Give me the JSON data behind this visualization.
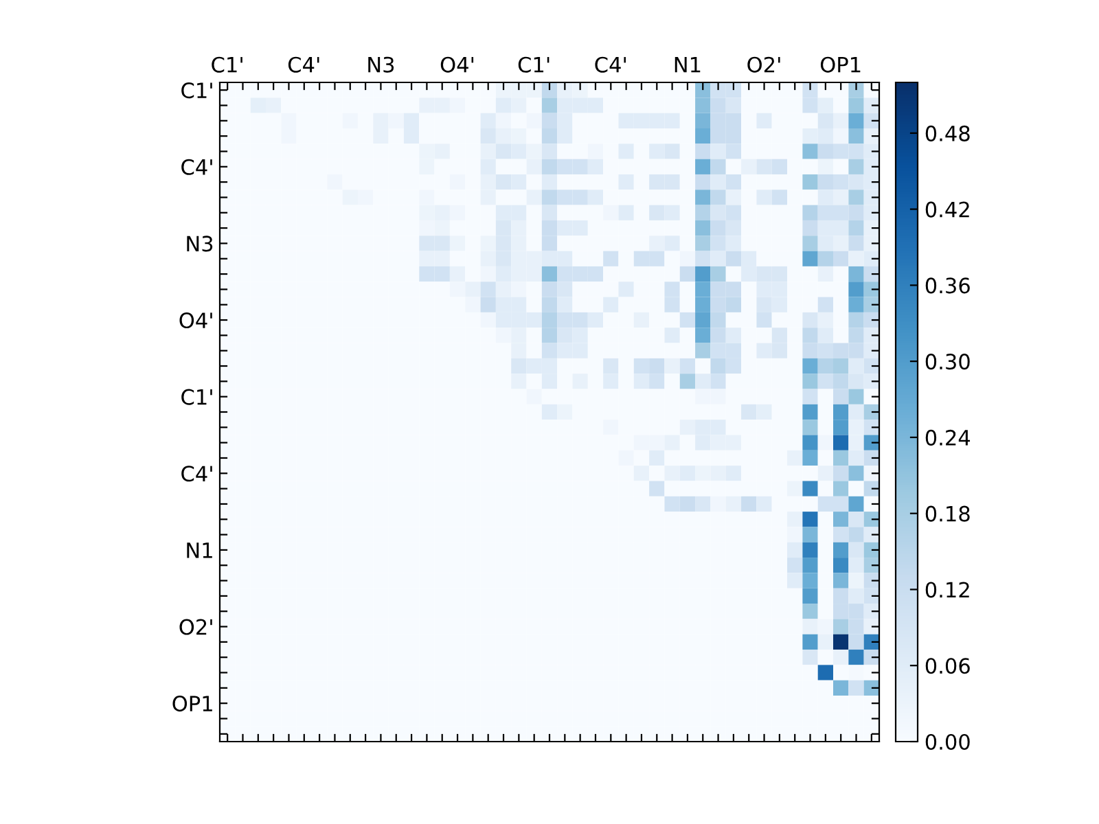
{
  "chart_data": {
    "type": "heatmap",
    "categories": [
      "C1'",
      null,
      null,
      null,
      null,
      "C4'",
      null,
      null,
      null,
      null,
      "N3",
      null,
      null,
      null,
      null,
      "O4'",
      null,
      null,
      null,
      null,
      "C1'",
      null,
      null,
      null,
      null,
      "C4'",
      null,
      null,
      null,
      null,
      "N1",
      null,
      null,
      null,
      null,
      "O2'",
      null,
      null,
      null,
      null,
      "OP1",
      null,
      null
    ],
    "y_categories": [
      "C1'",
      null,
      null,
      null,
      null,
      "C4'",
      null,
      null,
      null,
      null,
      "N3",
      null,
      null,
      null,
      null,
      "O4'",
      null,
      null,
      null,
      null,
      "C1'",
      null,
      null,
      null,
      null,
      "C4'",
      null,
      null,
      null,
      null,
      "N1",
      null,
      null,
      null,
      null,
      "O2'",
      null,
      null,
      null,
      null,
      "OP1",
      null,
      null
    ],
    "cells": [
      [
        0,
        0,
        0,
        0,
        0,
        0,
        0,
        0,
        0,
        0,
        0,
        0,
        0,
        0,
        0,
        0,
        0,
        0,
        0.03,
        0.03,
        0.03,
        0.14,
        0.04,
        0.03,
        0,
        0,
        0,
        0,
        0,
        0,
        0,
        0.22,
        0.1,
        0.1,
        0,
        0,
        0,
        0,
        0.1,
        0,
        0,
        0.18,
        0
      ],
      [
        0,
        0,
        0.05,
        0.04,
        0,
        0,
        0,
        0,
        0,
        0,
        0,
        0,
        0,
        0.04,
        0.04,
        0.02,
        0,
        0,
        0.06,
        0.04,
        0,
        0.18,
        0.06,
        0.06,
        0.06,
        0,
        0,
        0,
        0,
        0,
        0,
        0.22,
        0.12,
        0.08,
        0,
        0,
        0,
        0,
        0.1,
        0.05,
        0,
        0.2,
        0.06
      ],
      [
        0,
        0,
        0,
        0,
        0.02,
        0,
        0,
        0,
        0.02,
        0,
        0.04,
        0.02,
        0.06,
        0,
        0,
        0,
        0,
        0.06,
        0.02,
        0,
        0.02,
        0.12,
        0.06,
        0,
        0,
        0,
        0.06,
        0.06,
        0.06,
        0.06,
        0,
        0.24,
        0.12,
        0.12,
        0,
        0.06,
        0,
        0,
        0,
        0.08,
        0.04,
        0.26,
        0.1
      ],
      [
        0,
        0,
        0,
        0,
        0.02,
        0,
        0,
        0,
        0,
        0,
        0.04,
        0,
        0.06,
        0,
        0,
        0,
        0,
        0.08,
        0.04,
        0.03,
        0,
        0.14,
        0.06,
        0,
        0,
        0,
        0,
        0,
        0,
        0,
        0,
        0.26,
        0.12,
        0.12,
        0,
        0,
        0,
        0,
        0.05,
        0.06,
        0.02,
        0.22,
        0.04
      ],
      [
        0,
        0,
        0,
        0,
        0,
        0,
        0,
        0,
        0,
        0,
        0,
        0,
        0,
        0.03,
        0.04,
        0,
        0,
        0.04,
        0.08,
        0.06,
        0.03,
        0.08,
        0,
        0,
        0.02,
        0,
        0.06,
        0,
        0.06,
        0.08,
        0,
        0.12,
        0.06,
        0.1,
        0,
        0,
        0,
        0,
        0.22,
        0.12,
        0.1,
        0.1,
        0.06
      ],
      [
        0,
        0,
        0,
        0,
        0,
        0,
        0,
        0,
        0,
        0,
        0,
        0,
        0,
        0.03,
        0,
        0,
        0,
        0.06,
        0,
        0,
        0.04,
        0.14,
        0.1,
        0.1,
        0.06,
        0,
        0,
        0,
        0,
        0,
        0,
        0.26,
        0.14,
        0,
        0.04,
        0.08,
        0.1,
        0,
        0,
        0.03,
        0,
        0.18,
        0.06
      ],
      [
        0,
        0,
        0,
        0,
        0,
        0,
        0,
        0.02,
        0,
        0,
        0,
        0,
        0,
        0,
        0,
        0.02,
        0,
        0.04,
        0.08,
        0.06,
        0,
        0.06,
        0,
        0,
        0,
        0,
        0.06,
        0,
        0.08,
        0.08,
        0,
        0.12,
        0.06,
        0.1,
        0,
        0,
        0,
        0,
        0.2,
        0.12,
        0.1,
        0.08,
        0.06
      ],
      [
        0,
        0,
        0,
        0,
        0,
        0,
        0,
        0,
        0.03,
        0.02,
        0,
        0,
        0,
        0.02,
        0,
        0,
        0,
        0.04,
        0,
        0,
        0.04,
        0.14,
        0.1,
        0.1,
        0.06,
        0,
        0,
        0,
        0,
        0,
        0,
        0.24,
        0.14,
        0.04,
        0,
        0.06,
        0.1,
        0,
        0,
        0.06,
        0.04,
        0.18,
        0.06
      ],
      [
        0,
        0,
        0,
        0,
        0,
        0,
        0,
        0,
        0,
        0,
        0,
        0,
        0,
        0.03,
        0.04,
        0.02,
        0,
        0,
        0.06,
        0.06,
        0,
        0.08,
        0,
        0,
        0,
        0.02,
        0.06,
        0,
        0.08,
        0.06,
        0,
        0.16,
        0.08,
        0.1,
        0,
        0,
        0,
        0,
        0.16,
        0.1,
        0.1,
        0.12,
        0.06
      ],
      [
        0,
        0,
        0,
        0,
        0,
        0,
        0,
        0,
        0,
        0,
        0,
        0,
        0,
        0.02,
        0.03,
        0,
        0,
        0,
        0.08,
        0.04,
        0,
        0.12,
        0.06,
        0.06,
        0,
        0,
        0,
        0,
        0,
        0,
        0,
        0.22,
        0.12,
        0.08,
        0,
        0,
        0,
        0,
        0.12,
        0.06,
        0.06,
        0.16,
        0.04
      ],
      [
        0,
        0,
        0,
        0,
        0,
        0,
        0,
        0,
        0,
        0,
        0,
        0,
        0,
        0.08,
        0.08,
        0.03,
        0,
        0.03,
        0.08,
        0.04,
        0,
        0.12,
        0,
        0,
        0,
        0,
        0,
        0,
        0.04,
        0.06,
        0,
        0.18,
        0.1,
        0.06,
        0,
        0,
        0,
        0,
        0.18,
        0.06,
        0.04,
        0.12,
        0.04
      ],
      [
        0,
        0,
        0,
        0,
        0,
        0,
        0,
        0,
        0,
        0,
        0,
        0,
        0,
        0.04,
        0.04,
        0,
        0,
        0.04,
        0.08,
        0.04,
        0.04,
        0.06,
        0.06,
        0,
        0,
        0.1,
        0,
        0.1,
        0.1,
        0,
        0.02,
        0.1,
        0.06,
        0.12,
        0.06,
        0,
        0,
        0,
        0.28,
        0.16,
        0.12,
        0.04,
        0.06
      ],
      [
        0,
        0,
        0,
        0,
        0,
        0,
        0,
        0,
        0,
        0,
        0,
        0,
        0,
        0.1,
        0.1,
        0.04,
        0,
        0.02,
        0.06,
        0.04,
        0.04,
        0.22,
        0.1,
        0.1,
        0.1,
        0,
        0,
        0,
        0,
        0,
        0.12,
        0.3,
        0.18,
        0,
        0.06,
        0.08,
        0.08,
        0,
        0,
        0.04,
        0,
        0.24,
        0.12
      ],
      [
        0,
        0,
        0,
        0,
        0,
        0,
        0,
        0,
        0,
        0,
        0,
        0,
        0,
        0,
        0,
        0.02,
        0.04,
        0.1,
        0.04,
        0.02,
        0,
        0.12,
        0.08,
        0,
        0,
        0,
        0.06,
        0,
        0,
        0.1,
        0,
        0.26,
        0.12,
        0.12,
        0,
        0.06,
        0.06,
        0,
        0,
        0,
        0,
        0.3,
        0.2
      ],
      [
        0,
        0,
        0,
        0,
        0,
        0,
        0,
        0,
        0,
        0,
        0,
        0,
        0,
        0,
        0,
        0,
        0.02,
        0.12,
        0.06,
        0.06,
        0,
        0.14,
        0.06,
        0,
        0,
        0.06,
        0,
        0,
        0,
        0.1,
        0,
        0.26,
        0.12,
        0.14,
        0,
        0.08,
        0.06,
        0,
        0,
        0.1,
        0,
        0.26,
        0.18
      ],
      [
        0,
        0,
        0,
        0,
        0,
        0,
        0,
        0,
        0,
        0,
        0,
        0,
        0,
        0,
        0,
        0,
        0,
        0.02,
        0.06,
        0.06,
        0.06,
        0.16,
        0.1,
        0.1,
        0.06,
        0,
        0,
        0.04,
        0,
        0,
        0.1,
        0.28,
        0.14,
        0,
        0,
        0.1,
        0,
        0,
        0.08,
        0.04,
        0,
        0.16,
        0.12
      ],
      [
        0,
        0,
        0,
        0,
        0,
        0,
        0,
        0,
        0,
        0,
        0,
        0,
        0,
        0,
        0,
        0,
        0,
        0,
        0.02,
        0.04,
        0,
        0.16,
        0.08,
        0.06,
        0,
        0,
        0,
        0,
        0,
        0.06,
        0,
        0.26,
        0.12,
        0.06,
        0,
        0,
        0.08,
        0,
        0.14,
        0.06,
        0,
        0.14,
        0.06
      ],
      [
        0,
        0,
        0,
        0,
        0,
        0,
        0,
        0,
        0,
        0,
        0,
        0,
        0,
        0,
        0,
        0,
        0,
        0,
        0,
        0.04,
        0,
        0.1,
        0.06,
        0.06,
        0,
        0,
        0,
        0,
        0,
        0,
        0,
        0.18,
        0.1,
        0.1,
        0,
        0.06,
        0.08,
        0,
        0.12,
        0.1,
        0.12,
        0.12,
        0.06
      ],
      [
        0,
        0,
        0,
        0,
        0,
        0,
        0,
        0,
        0,
        0,
        0,
        0,
        0,
        0,
        0,
        0,
        0,
        0,
        0,
        0.08,
        0.06,
        0.06,
        0,
        0,
        0,
        0.08,
        0,
        0.1,
        0.12,
        0.04,
        0.1,
        0,
        0.14,
        0.1,
        0,
        0,
        0,
        0,
        0.26,
        0.16,
        0.18,
        0.06,
        0.1
      ],
      [
        0,
        0,
        0,
        0,
        0,
        0,
        0,
        0,
        0,
        0,
        0,
        0,
        0,
        0,
        0,
        0,
        0,
        0,
        0,
        0.04,
        0,
        0.06,
        0,
        0.04,
        0,
        0.06,
        0,
        0.06,
        0.1,
        0,
        0.18,
        0.06,
        0.1,
        0,
        0,
        0,
        0,
        0,
        0.2,
        0.1,
        0.14,
        0.08,
        0.06
      ],
      [
        0,
        0,
        0,
        0,
        0,
        0,
        0,
        0,
        0,
        0,
        0,
        0,
        0,
        0,
        0,
        0,
        0,
        0,
        0,
        0,
        0.02,
        0,
        0,
        0,
        0,
        0,
        0,
        0,
        0,
        0,
        0,
        0.02,
        0.02,
        0,
        0,
        0,
        0,
        0,
        0.1,
        0,
        0.12,
        0.2,
        0
      ],
      [
        0,
        0,
        0,
        0,
        0,
        0,
        0,
        0,
        0,
        0,
        0,
        0,
        0,
        0,
        0,
        0,
        0,
        0,
        0,
        0,
        0,
        0.06,
        0.03,
        0,
        0,
        0,
        0,
        0,
        0,
        0,
        0,
        0,
        0,
        0,
        0.08,
        0.05,
        0,
        0,
        0.3,
        0,
        0.3,
        0.06,
        0.18
      ],
      [
        0,
        0,
        0,
        0,
        0,
        0,
        0,
        0,
        0,
        0,
        0,
        0,
        0,
        0,
        0,
        0,
        0,
        0,
        0,
        0,
        0,
        0,
        0,
        0,
        0,
        0.02,
        0,
        0,
        0,
        0,
        0.04,
        0.06,
        0.06,
        0,
        0,
        0,
        0,
        0,
        0.2,
        0,
        0.3,
        0.04,
        0.1
      ],
      [
        0,
        0,
        0,
        0,
        0,
        0,
        0,
        0,
        0,
        0,
        0,
        0,
        0,
        0,
        0,
        0,
        0,
        0,
        0,
        0,
        0,
        0,
        0,
        0,
        0,
        0,
        0,
        0.02,
        0.02,
        0.04,
        0,
        0.06,
        0.04,
        0.04,
        0,
        0,
        0,
        0,
        0.32,
        0.02,
        0.4,
        0.04,
        0.3
      ],
      [
        0,
        0,
        0,
        0,
        0,
        0,
        0,
        0,
        0,
        0,
        0,
        0,
        0,
        0,
        0,
        0,
        0,
        0,
        0,
        0,
        0,
        0,
        0,
        0,
        0,
        0,
        0.02,
        0,
        0.06,
        0,
        0,
        0,
        0,
        0,
        0,
        0,
        0,
        0.04,
        0.26,
        0,
        0.2,
        0.06,
        0.12
      ],
      [
        0,
        0,
        0,
        0,
        0,
        0,
        0,
        0,
        0,
        0,
        0,
        0,
        0,
        0,
        0,
        0,
        0,
        0,
        0,
        0,
        0,
        0,
        0,
        0,
        0,
        0,
        0,
        0.04,
        0,
        0.04,
        0.06,
        0.03,
        0.04,
        0.06,
        0,
        0,
        0,
        0,
        0,
        0.04,
        0.12,
        0.22,
        0.02
      ],
      [
        0,
        0,
        0,
        0,
        0,
        0,
        0,
        0,
        0,
        0,
        0,
        0,
        0,
        0,
        0,
        0,
        0,
        0,
        0,
        0,
        0,
        0,
        0,
        0,
        0,
        0,
        0,
        0,
        0.1,
        0,
        0,
        0,
        0,
        0,
        0,
        0,
        0,
        0.03,
        0.34,
        0,
        0.2,
        0,
        0.14
      ],
      [
        0,
        0,
        0,
        0,
        0,
        0,
        0,
        0,
        0,
        0,
        0,
        0,
        0,
        0,
        0,
        0,
        0,
        0,
        0,
        0,
        0,
        0,
        0,
        0,
        0,
        0,
        0,
        0,
        0,
        0.1,
        0.12,
        0.08,
        0.02,
        0.04,
        0.12,
        0.06,
        0,
        0,
        0,
        0.1,
        0.1,
        0.28,
        0
      ],
      [
        0,
        0,
        0,
        0,
        0,
        0,
        0,
        0,
        0,
        0,
        0,
        0,
        0,
        0,
        0,
        0,
        0,
        0,
        0,
        0,
        0,
        0,
        0,
        0,
        0,
        0,
        0,
        0,
        0,
        0,
        0,
        0,
        0,
        0,
        0,
        0,
        0,
        0.04,
        0.38,
        0,
        0.24,
        0.08,
        0.2
      ],
      [
        0,
        0,
        0,
        0,
        0,
        0,
        0,
        0,
        0,
        0,
        0,
        0,
        0,
        0,
        0,
        0,
        0,
        0,
        0,
        0,
        0,
        0,
        0,
        0,
        0,
        0,
        0,
        0,
        0,
        0,
        0,
        0,
        0,
        0,
        0,
        0,
        0,
        0.02,
        0.24,
        0,
        0.1,
        0.14,
        0.06
      ],
      [
        0,
        0,
        0,
        0,
        0,
        0,
        0,
        0,
        0,
        0,
        0,
        0,
        0,
        0,
        0,
        0,
        0,
        0,
        0,
        0,
        0,
        0,
        0,
        0,
        0,
        0,
        0,
        0,
        0,
        0,
        0,
        0,
        0,
        0,
        0,
        0,
        0,
        0.06,
        0.36,
        0,
        0.3,
        0.08,
        0.2
      ],
      [
        0,
        0,
        0,
        0,
        0,
        0,
        0,
        0,
        0,
        0,
        0,
        0,
        0,
        0,
        0,
        0,
        0,
        0,
        0,
        0,
        0,
        0,
        0,
        0,
        0,
        0,
        0,
        0,
        0,
        0,
        0,
        0,
        0,
        0,
        0,
        0,
        0,
        0.1,
        0.3,
        0,
        0.34,
        0.06,
        0.18
      ],
      [
        0,
        0,
        0,
        0,
        0,
        0,
        0,
        0,
        0,
        0,
        0,
        0,
        0,
        0,
        0,
        0,
        0,
        0,
        0,
        0,
        0,
        0,
        0,
        0,
        0,
        0,
        0,
        0,
        0,
        0,
        0,
        0,
        0,
        0,
        0,
        0,
        0,
        0.06,
        0.26,
        0,
        0.24,
        0.03,
        0.12
      ],
      [
        0,
        0,
        0,
        0,
        0,
        0,
        0,
        0,
        0,
        0,
        0,
        0,
        0,
        0,
        0,
        0,
        0,
        0,
        0,
        0,
        0,
        0,
        0,
        0,
        0,
        0,
        0,
        0,
        0,
        0,
        0,
        0,
        0,
        0,
        0,
        0,
        0,
        0,
        0.3,
        0,
        0.12,
        0.06,
        0.1
      ],
      [
        0,
        0,
        0,
        0,
        0,
        0,
        0,
        0,
        0,
        0,
        0,
        0,
        0,
        0,
        0,
        0,
        0,
        0,
        0,
        0,
        0,
        0,
        0,
        0,
        0,
        0,
        0,
        0,
        0,
        0,
        0,
        0,
        0,
        0,
        0,
        0,
        0,
        0,
        0.2,
        0,
        0.12,
        0.12,
        0.06
      ],
      [
        0,
        0,
        0,
        0,
        0,
        0,
        0,
        0,
        0,
        0,
        0,
        0,
        0,
        0,
        0,
        0,
        0,
        0,
        0,
        0,
        0,
        0,
        0,
        0,
        0,
        0,
        0,
        0,
        0,
        0,
        0,
        0,
        0,
        0,
        0,
        0,
        0,
        0,
        0.04,
        0.02,
        0.18,
        0.12,
        0.04
      ],
      [
        0,
        0,
        0,
        0,
        0,
        0,
        0,
        0,
        0,
        0,
        0,
        0,
        0,
        0,
        0,
        0,
        0,
        0,
        0,
        0,
        0,
        0,
        0,
        0,
        0,
        0,
        0,
        0,
        0,
        0,
        0,
        0,
        0,
        0,
        0,
        0,
        0,
        0,
        0.3,
        0.04,
        0.51,
        0.12,
        0.36
      ],
      [
        0,
        0,
        0,
        0,
        0,
        0,
        0,
        0,
        0,
        0,
        0,
        0,
        0,
        0,
        0,
        0,
        0,
        0,
        0,
        0,
        0,
        0,
        0,
        0,
        0,
        0,
        0,
        0,
        0,
        0,
        0,
        0,
        0,
        0,
        0,
        0,
        0,
        0,
        0.08,
        0,
        0.04,
        0.36,
        0.12
      ],
      [
        0,
        0,
        0,
        0,
        0,
        0,
        0,
        0,
        0,
        0,
        0,
        0,
        0,
        0,
        0,
        0,
        0,
        0,
        0,
        0,
        0,
        0,
        0,
        0,
        0,
        0,
        0,
        0,
        0,
        0,
        0,
        0,
        0,
        0,
        0,
        0,
        0,
        0,
        0,
        0.4,
        0,
        0.01,
        0
      ],
      [
        0,
        0,
        0,
        0,
        0,
        0,
        0,
        0,
        0,
        0,
        0,
        0,
        0,
        0,
        0,
        0,
        0,
        0,
        0,
        0,
        0,
        0,
        0,
        0,
        0,
        0,
        0,
        0,
        0,
        0,
        0,
        0,
        0,
        0,
        0,
        0,
        0,
        0,
        0,
        0,
        0.24,
        0.1,
        0.22
      ],
      [
        0,
        0,
        0,
        0,
        0,
        0,
        0,
        0,
        0,
        0,
        0,
        0,
        0,
        0,
        0,
        0,
        0,
        0,
        0,
        0,
        0,
        0,
        0,
        0,
        0,
        0,
        0,
        0,
        0,
        0,
        0,
        0,
        0,
        0,
        0,
        0,
        0,
        0,
        0,
        0,
        0,
        0,
        0
      ],
      [
        0,
        0,
        0,
        0,
        0,
        0,
        0,
        0,
        0,
        0,
        0,
        0,
        0,
        0,
        0,
        0,
        0,
        0,
        0,
        0,
        0,
        0,
        0,
        0,
        0,
        0,
        0,
        0,
        0,
        0,
        0,
        0,
        0,
        0,
        0,
        0,
        0,
        0,
        0,
        0,
        0,
        0,
        0
      ],
      [
        0,
        0,
        0,
        0,
        0,
        0,
        0,
        0,
        0,
        0,
        0,
        0,
        0,
        0,
        0,
        0,
        0,
        0,
        0,
        0,
        0,
        0,
        0,
        0,
        0,
        0,
        0,
        0,
        0,
        0,
        0,
        0,
        0,
        0,
        0,
        0,
        0,
        0,
        0,
        0,
        0,
        0,
        0
      ]
    ],
    "clim": [
      0,
      0.52
    ],
    "cticks": [
      {
        "value": 0,
        "label": "0.00"
      },
      {
        "value": 0.06,
        "label": "0.06"
      },
      {
        "value": 0.12,
        "label": "0.12"
      },
      {
        "value": 0.18,
        "label": "0.18"
      },
      {
        "value": 0.24,
        "label": "0.24"
      },
      {
        "value": 0.3,
        "label": "0.30"
      },
      {
        "value": 0.36,
        "label": "0.36"
      },
      {
        "value": 0.42,
        "label": "0.42"
      },
      {
        "value": 0.48,
        "label": "0.48"
      }
    ],
    "grid": false
  }
}
